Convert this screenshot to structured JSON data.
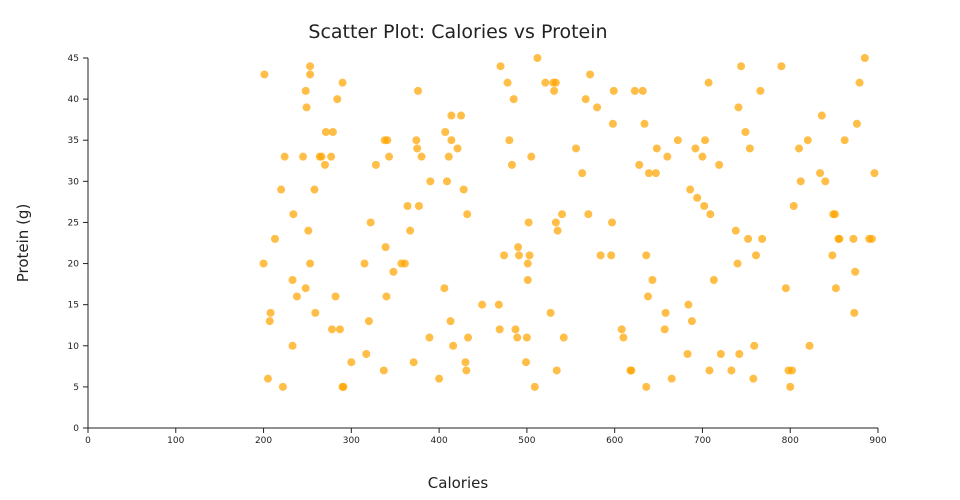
{
  "chart_data": {
    "type": "scatter",
    "title": "Scatter Plot: Calories vs Protein",
    "xlabel": "Calories",
    "ylabel": "Protein (g)",
    "xlim": [
      0,
      900
    ],
    "ylim": [
      0,
      45
    ],
    "xticks": [
      0,
      100,
      200,
      300,
      400,
      500,
      600,
      700,
      800,
      900
    ],
    "yticks": [
      0,
      5,
      10,
      15,
      20,
      25,
      30,
      35,
      40,
      45
    ],
    "grid": false,
    "marker_color": "#ffa500",
    "points": [
      [
        201,
        43
      ],
      [
        200,
        20
      ],
      [
        205,
        6
      ],
      [
        207,
        13
      ],
      [
        208,
        14
      ],
      [
        213,
        23
      ],
      [
        220,
        29
      ],
      [
        222,
        5
      ],
      [
        224,
        33
      ],
      [
        233,
        10
      ],
      [
        233,
        18
      ],
      [
        234,
        26
      ],
      [
        238,
        16
      ],
      [
        245,
        33
      ],
      [
        248,
        41
      ],
      [
        248,
        17
      ],
      [
        249,
        39
      ],
      [
        251,
        24
      ],
      [
        253,
        44
      ],
      [
        253,
        43
      ],
      [
        253,
        20
      ],
      [
        258,
        29
      ],
      [
        259,
        14
      ],
      [
        264,
        33
      ],
      [
        266,
        33
      ],
      [
        270,
        32
      ],
      [
        271,
        36
      ],
      [
        277,
        33
      ],
      [
        278,
        12
      ],
      [
        279,
        36
      ],
      [
        282,
        16
      ],
      [
        284,
        40
      ],
      [
        287,
        12
      ],
      [
        290,
        42
      ],
      [
        290,
        5
      ],
      [
        291,
        5
      ],
      [
        300,
        8
      ],
      [
        315,
        20
      ],
      [
        317,
        9
      ],
      [
        320,
        13
      ],
      [
        322,
        25
      ],
      [
        328,
        32
      ],
      [
        337,
        7
      ],
      [
        338,
        35
      ],
      [
        339,
        22
      ],
      [
        340,
        16
      ],
      [
        341,
        35
      ],
      [
        343,
        33
      ],
      [
        348,
        19
      ],
      [
        357,
        20
      ],
      [
        361,
        20
      ],
      [
        364,
        27
      ],
      [
        367,
        24
      ],
      [
        371,
        8
      ],
      [
        374,
        35
      ],
      [
        375,
        34
      ],
      [
        376,
        41
      ],
      [
        377,
        27
      ],
      [
        380,
        33
      ],
      [
        389,
        11
      ],
      [
        390,
        30
      ],
      [
        400,
        6
      ],
      [
        406,
        17
      ],
      [
        407,
        36
      ],
      [
        409,
        30
      ],
      [
        411,
        33
      ],
      [
        413,
        13
      ],
      [
        414,
        38
      ],
      [
        414,
        35
      ],
      [
        416,
        10
      ],
      [
        421,
        34
      ],
      [
        425,
        38
      ],
      [
        428,
        29
      ],
      [
        430,
        8
      ],
      [
        431,
        7
      ],
      [
        432,
        26
      ],
      [
        433,
        11
      ],
      [
        449,
        15
      ],
      [
        468,
        15
      ],
      [
        469,
        12
      ],
      [
        470,
        44
      ],
      [
        474,
        21
      ],
      [
        478,
        42
      ],
      [
        480,
        35
      ],
      [
        483,
        32
      ],
      [
        485,
        40
      ],
      [
        487,
        12
      ],
      [
        489,
        11
      ],
      [
        490,
        22
      ],
      [
        491,
        21
      ],
      [
        499,
        8
      ],
      [
        500,
        11
      ],
      [
        501,
        18
      ],
      [
        501,
        20
      ],
      [
        502,
        25
      ],
      [
        503,
        21
      ],
      [
        505,
        33
      ],
      [
        509,
        5
      ],
      [
        512,
        45
      ],
      [
        521,
        42
      ],
      [
        527,
        14
      ],
      [
        530,
        42
      ],
      [
        531,
        41
      ],
      [
        533,
        42
      ],
      [
        533,
        25
      ],
      [
        534,
        7
      ],
      [
        535,
        24
      ],
      [
        540,
        26
      ],
      [
        542,
        11
      ],
      [
        556,
        34
      ],
      [
        563,
        31
      ],
      [
        567,
        40
      ],
      [
        570,
        26
      ],
      [
        572,
        43
      ],
      [
        580,
        39
      ],
      [
        584,
        21
      ],
      [
        596,
        21
      ],
      [
        597,
        25
      ],
      [
        598,
        37
      ],
      [
        599,
        41
      ],
      [
        608,
        12
      ],
      [
        610,
        11
      ],
      [
        618,
        7
      ],
      [
        619,
        7
      ],
      [
        623,
        41
      ],
      [
        628,
        32
      ],
      [
        632,
        41
      ],
      [
        634,
        37
      ],
      [
        636,
        21
      ],
      [
        636,
        5
      ],
      [
        638,
        16
      ],
      [
        639,
        31
      ],
      [
        643,
        18
      ],
      [
        647,
        31
      ],
      [
        648,
        34
      ],
      [
        657,
        12
      ],
      [
        658,
        14
      ],
      [
        660,
        33
      ],
      [
        665,
        6
      ],
      [
        672,
        35
      ],
      [
        683,
        9
      ],
      [
        684,
        15
      ],
      [
        686,
        29
      ],
      [
        688,
        13
      ],
      [
        692,
        34
      ],
      [
        694,
        28
      ],
      [
        700,
        33
      ],
      [
        702,
        27
      ],
      [
        703,
        35
      ],
      [
        707,
        42
      ],
      [
        708,
        7
      ],
      [
        709,
        26
      ],
      [
        713,
        18
      ],
      [
        719,
        32
      ],
      [
        721,
        9
      ],
      [
        733,
        7
      ],
      [
        738,
        24
      ],
      [
        740,
        20
      ],
      [
        741,
        39
      ],
      [
        742,
        9
      ],
      [
        744,
        44
      ],
      [
        749,
        36
      ],
      [
        752,
        23
      ],
      [
        754,
        34
      ],
      [
        758,
        6
      ],
      [
        759,
        10
      ],
      [
        761,
        21
      ],
      [
        766,
        41
      ],
      [
        768,
        23
      ],
      [
        790,
        44
      ],
      [
        795,
        17
      ],
      [
        798,
        7
      ],
      [
        800,
        5
      ],
      [
        802,
        7
      ],
      [
        804,
        27
      ],
      [
        810,
        34
      ],
      [
        812,
        30
      ],
      [
        820,
        35
      ],
      [
        822,
        10
      ],
      [
        834,
        31
      ],
      [
        836,
        38
      ],
      [
        840,
        30
      ],
      [
        848,
        21
      ],
      [
        849,
        26
      ],
      [
        851,
        26
      ],
      [
        852,
        17
      ],
      [
        855,
        23
      ],
      [
        856,
        23
      ],
      [
        862,
        35
      ],
      [
        872,
        23
      ],
      [
        873,
        14
      ],
      [
        874,
        19
      ],
      [
        876,
        37
      ],
      [
        879,
        42
      ],
      [
        885,
        45
      ],
      [
        890,
        23
      ],
      [
        893,
        23
      ],
      [
        896,
        31
      ]
    ]
  }
}
